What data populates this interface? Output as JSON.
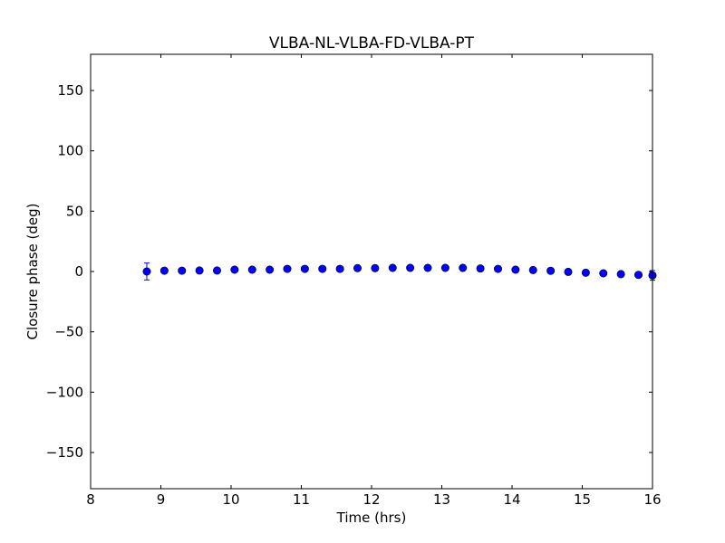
{
  "chart_data": {
    "type": "scatter",
    "title": "VLBA-NL-VLBA-FD-VLBA-PT",
    "xlabel": "Time (hrs)",
    "ylabel": "Closure phase (deg)",
    "xlim": [
      8,
      16
    ],
    "ylim": [
      -180,
      180
    ],
    "xticks": [
      8,
      9,
      10,
      11,
      12,
      13,
      14,
      15,
      16
    ],
    "xtick_labels": [
      "8",
      "9",
      "10",
      "11",
      "12",
      "13",
      "14",
      "15",
      "16"
    ],
    "yticks": [
      150,
      100,
      50,
      0,
      -50,
      -100,
      -150
    ],
    "ytick_labels": [
      "150",
      "100",
      "50",
      "0",
      "−50",
      "−100",
      "−150"
    ],
    "grid": false,
    "marker_color": "#0000ff",
    "errorbar_color": "#0000ff",
    "x": [
      8.8,
      9.05,
      9.3,
      9.55,
      9.8,
      10.05,
      10.3,
      10.55,
      10.8,
      11.05,
      11.3,
      11.55,
      11.8,
      12.05,
      12.3,
      12.55,
      12.8,
      13.05,
      13.3,
      13.55,
      13.8,
      14.05,
      14.3,
      14.55,
      14.8,
      15.05,
      15.3,
      15.55,
      15.8,
      16.0
    ],
    "y": [
      0,
      0.7,
      0.7,
      0.8,
      0.8,
      1.5,
      1.5,
      1.5,
      2.2,
      2.2,
      2.2,
      2.2,
      2.8,
      2.8,
      3,
      3,
      3,
      3,
      3,
      2.5,
      2.2,
      1.5,
      1.2,
      0.6,
      -0.3,
      -1,
      -1.5,
      -2.2,
      -2.8,
      -3.2
    ],
    "yerr": [
      7,
      0.5,
      0.5,
      0.5,
      0.5,
      0.5,
      0.5,
      0.5,
      0.5,
      0.5,
      0.5,
      0.5,
      0.5,
      0.5,
      0.5,
      0.5,
      0.5,
      0.5,
      0.5,
      0.5,
      0.5,
      0.5,
      0.5,
      0.5,
      0.5,
      0.5,
      0.5,
      0.5,
      0.5,
      4
    ]
  }
}
